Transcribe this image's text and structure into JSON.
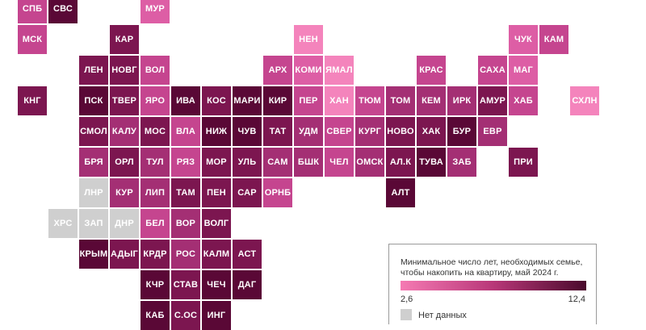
{
  "legend": {
    "title": "Минимальное число лет, необходимых семье, чтобы накопить на квартиру, май 2024 г.",
    "min": "2,6",
    "max": "12,4",
    "no_data": "Нет данных"
  },
  "colors": {
    "l1": "#f484bc",
    "l2": "#dd5ea5",
    "l3": "#c5458f",
    "l4": "#a42f74",
    "l5": "#7c1650",
    "l6": "#5a0836",
    "na": "#cfcfcf"
  },
  "regions": [
    {
      "label": "СПБ",
      "col": 0,
      "row": 0,
      "tone": "l3"
    },
    {
      "label": "СВС",
      "col": 1,
      "row": 0,
      "tone": "l6"
    },
    {
      "label": "МУР",
      "col": 4,
      "row": 0,
      "tone": "l2"
    },
    {
      "label": "МСК",
      "col": 0,
      "row": 1,
      "tone": "l3"
    },
    {
      "label": "КАР",
      "col": 3,
      "row": 1,
      "tone": "l5"
    },
    {
      "label": "НЕН",
      "col": 9,
      "row": 1,
      "tone": "l1"
    },
    {
      "label": "ЧУК",
      "col": 16,
      "row": 1,
      "tone": "l2"
    },
    {
      "label": "КАМ",
      "col": 17,
      "row": 1,
      "tone": "l3"
    },
    {
      "label": "ЛЕН",
      "col": 2,
      "row": 2,
      "tone": "l5"
    },
    {
      "label": "НОВГ",
      "col": 3,
      "row": 2,
      "tone": "l5"
    },
    {
      "label": "ВОЛ",
      "col": 4,
      "row": 2,
      "tone": "l3"
    },
    {
      "label": "АРХ",
      "col": 8,
      "row": 2,
      "tone": "l3"
    },
    {
      "label": "КОМИ",
      "col": 9,
      "row": 2,
      "tone": "l2"
    },
    {
      "label": "ЯМАЛ",
      "col": 10,
      "row": 2,
      "tone": "l1"
    },
    {
      "label": "КРАС",
      "col": 13,
      "row": 2,
      "tone": "l3"
    },
    {
      "label": "САХА",
      "col": 15,
      "row": 2,
      "tone": "l3"
    },
    {
      "label": "МАГ",
      "col": 16,
      "row": 2,
      "tone": "l2"
    },
    {
      "label": "КНГ",
      "col": 0,
      "row": 3,
      "tone": "l5"
    },
    {
      "label": "ПСК",
      "col": 2,
      "row": 3,
      "tone": "l6"
    },
    {
      "label": "ТВЕР",
      "col": 3,
      "row": 3,
      "tone": "l5"
    },
    {
      "label": "ЯРО",
      "col": 4,
      "row": 3,
      "tone": "l3"
    },
    {
      "label": "ИВА",
      "col": 5,
      "row": 3,
      "tone": "l6"
    },
    {
      "label": "КОС",
      "col": 6,
      "row": 3,
      "tone": "l5"
    },
    {
      "label": "МАРИ",
      "col": 7,
      "row": 3,
      "tone": "l6"
    },
    {
      "label": "КИР",
      "col": 8,
      "row": 3,
      "tone": "l6"
    },
    {
      "label": "ПЕР",
      "col": 9,
      "row": 3,
      "tone": "l3"
    },
    {
      "label": "ХАН",
      "col": 10,
      "row": 3,
      "tone": "l1"
    },
    {
      "label": "ТЮМ",
      "col": 11,
      "row": 3,
      "tone": "l3"
    },
    {
      "label": "ТОМ",
      "col": 12,
      "row": 3,
      "tone": "l4"
    },
    {
      "label": "КЕМ",
      "col": 13,
      "row": 3,
      "tone": "l4"
    },
    {
      "label": "ИРК",
      "col": 14,
      "row": 3,
      "tone": "l4"
    },
    {
      "label": "АМУР",
      "col": 15,
      "row": 3,
      "tone": "l5"
    },
    {
      "label": "ХАБ",
      "col": 16,
      "row": 3,
      "tone": "l3"
    },
    {
      "label": "СХЛН",
      "col": 18,
      "row": 3,
      "tone": "l1"
    },
    {
      "label": "СМОЛ",
      "col": 2,
      "row": 4,
      "tone": "l5"
    },
    {
      "label": "КАЛУ",
      "col": 3,
      "row": 4,
      "tone": "l4"
    },
    {
      "label": "МОС",
      "col": 4,
      "row": 4,
      "tone": "l5"
    },
    {
      "label": "ВЛА",
      "col": 5,
      "row": 4,
      "tone": "l3"
    },
    {
      "label": "НИЖ",
      "col": 6,
      "row": 4,
      "tone": "l6"
    },
    {
      "label": "ЧУВ",
      "col": 7,
      "row": 4,
      "tone": "l6"
    },
    {
      "label": "ТАТ",
      "col": 8,
      "row": 4,
      "tone": "l5"
    },
    {
      "label": "УДМ",
      "col": 9,
      "row": 4,
      "tone": "l4"
    },
    {
      "label": "СВЕР",
      "col": 10,
      "row": 4,
      "tone": "l3"
    },
    {
      "label": "КУРГ",
      "col": 11,
      "row": 4,
      "tone": "l4"
    },
    {
      "label": "НОВО",
      "col": 12,
      "row": 4,
      "tone": "l5"
    },
    {
      "label": "ХАК",
      "col": 13,
      "row": 4,
      "tone": "l5"
    },
    {
      "label": "БУР",
      "col": 14,
      "row": 4,
      "tone": "l6"
    },
    {
      "label": "ЕВР",
      "col": 15,
      "row": 4,
      "tone": "l4"
    },
    {
      "label": "БРЯ",
      "col": 2,
      "row": 5,
      "tone": "l4"
    },
    {
      "label": "ОРЛ",
      "col": 3,
      "row": 5,
      "tone": "l5"
    },
    {
      "label": "ТУЛ",
      "col": 4,
      "row": 5,
      "tone": "l4"
    },
    {
      "label": "РЯЗ",
      "col": 5,
      "row": 5,
      "tone": "l3"
    },
    {
      "label": "МОР",
      "col": 6,
      "row": 5,
      "tone": "l5"
    },
    {
      "label": "УЛЬ",
      "col": 7,
      "row": 5,
      "tone": "l5"
    },
    {
      "label": "САМ",
      "col": 8,
      "row": 5,
      "tone": "l4"
    },
    {
      "label": "БШК",
      "col": 9,
      "row": 5,
      "tone": "l4"
    },
    {
      "label": "ЧЕЛ",
      "col": 10,
      "row": 5,
      "tone": "l3"
    },
    {
      "label": "ОМСК",
      "col": 11,
      "row": 5,
      "tone": "l4"
    },
    {
      "label": "АЛ.К",
      "col": 12,
      "row": 5,
      "tone": "l5"
    },
    {
      "label": "ТУВА",
      "col": 13,
      "row": 5,
      "tone": "l6"
    },
    {
      "label": "ЗАБ",
      "col": 14,
      "row": 5,
      "tone": "l4"
    },
    {
      "label": "ПРИ",
      "col": 16,
      "row": 5,
      "tone": "l5"
    },
    {
      "label": "ЛНР",
      "col": 2,
      "row": 6,
      "tone": "na"
    },
    {
      "label": "КУР",
      "col": 3,
      "row": 6,
      "tone": "l4"
    },
    {
      "label": "ЛИП",
      "col": 4,
      "row": 6,
      "tone": "l4"
    },
    {
      "label": "ТАМ",
      "col": 5,
      "row": 6,
      "tone": "l5"
    },
    {
      "label": "ПЕН",
      "col": 6,
      "row": 6,
      "tone": "l5"
    },
    {
      "label": "САР",
      "col": 7,
      "row": 6,
      "tone": "l5"
    },
    {
      "label": "ОРНБ",
      "col": 8,
      "row": 6,
      "tone": "l3"
    },
    {
      "label": "АЛТ",
      "col": 12,
      "row": 6,
      "tone": "l6"
    },
    {
      "label": "ХРС",
      "col": 1,
      "row": 7,
      "tone": "na"
    },
    {
      "label": "ЗАП",
      "col": 2,
      "row": 7,
      "tone": "na"
    },
    {
      "label": "ДНР",
      "col": 3,
      "row": 7,
      "tone": "na"
    },
    {
      "label": "БЕЛ",
      "col": 4,
      "row": 7,
      "tone": "l3"
    },
    {
      "label": "ВОР",
      "col": 5,
      "row": 7,
      "tone": "l4"
    },
    {
      "label": "ВОЛГ",
      "col": 6,
      "row": 7,
      "tone": "l5"
    },
    {
      "label": "КРЫМ",
      "col": 2,
      "row": 8,
      "tone": "l6"
    },
    {
      "label": "АДЫГ",
      "col": 3,
      "row": 8,
      "tone": "l5"
    },
    {
      "label": "КРДР",
      "col": 4,
      "row": 8,
      "tone": "l5"
    },
    {
      "label": "РОС",
      "col": 5,
      "row": 8,
      "tone": "l4"
    },
    {
      "label": "КАЛМ",
      "col": 6,
      "row": 8,
      "tone": "l5"
    },
    {
      "label": "АСТ",
      "col": 7,
      "row": 8,
      "tone": "l5"
    },
    {
      "label": "КЧР",
      "col": 4,
      "row": 9,
      "tone": "l6"
    },
    {
      "label": "СТАВ",
      "col": 5,
      "row": 9,
      "tone": "l5"
    },
    {
      "label": "ЧЕЧ",
      "col": 6,
      "row": 9,
      "tone": "l6"
    },
    {
      "label": "ДАГ",
      "col": 7,
      "row": 9,
      "tone": "l6"
    },
    {
      "label": "КАБ",
      "col": 4,
      "row": 10,
      "tone": "l6"
    },
    {
      "label": "С.ОС",
      "col": 5,
      "row": 10,
      "tone": "l5"
    },
    {
      "label": "ИНГ",
      "col": 6,
      "row": 10,
      "tone": "l6"
    }
  ]
}
